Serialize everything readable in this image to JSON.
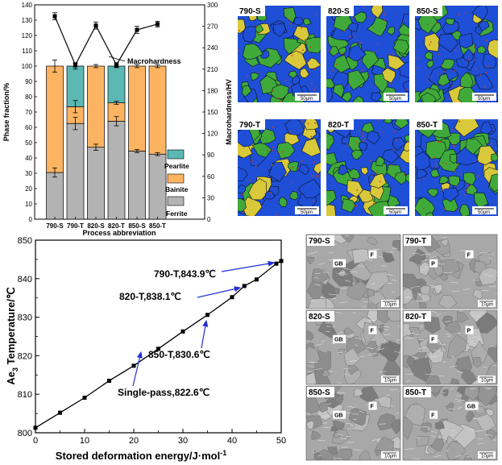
{
  "chart_data": [
    {
      "type": "bar",
      "categories": [
        "790-S",
        "790-T",
        "820-S",
        "820-T",
        "850-S",
        "850-T"
      ],
      "series": [
        {
          "name": "Ferrite",
          "color": "#b3b3b3",
          "values": [
            30.5,
            62.5,
            47.0,
            64.0,
            44.5,
            42.5
          ],
          "err": [
            3,
            4,
            2,
            3,
            1,
            1
          ]
        },
        {
          "name": "Bainite",
          "color": "#fdb462",
          "values": [
            69.5,
            11.0,
            53.0,
            12.0,
            55.5,
            57.5
          ],
          "err": [
            4,
            4,
            1,
            1,
            1,
            1
          ]
        },
        {
          "name": "Pearlite",
          "color": "#5cb8b3",
          "values": [
            0,
            26.5,
            0,
            24.0,
            0,
            0
          ],
          "err": [
            0,
            2,
            0,
            1,
            0,
            0
          ]
        }
      ],
      "line": {
        "name": "Macrohardness",
        "values": [
          284,
          216,
          271,
          216,
          265,
          273
        ],
        "err": [
          5,
          3,
          5,
          3,
          5,
          4
        ]
      },
      "xlabel": "Process abbreviation",
      "ylabel": "Phase fraction/%",
      "y2label": "Macrohardness/HV",
      "ylim": [
        0,
        140
      ],
      "yticks": [
        0,
        10,
        20,
        30,
        40,
        50,
        60,
        70,
        80,
        90,
        100,
        110,
        120,
        130,
        140
      ],
      "y2lim": [
        0,
        300
      ],
      "y2ticks": [
        0,
        30,
        60,
        90,
        120,
        150,
        180,
        210,
        240,
        270,
        300
      ],
      "annotation": "Macrohardness",
      "legend_position": "right"
    },
    {
      "type": "line",
      "x": [
        0,
        5,
        10,
        15,
        20,
        25,
        30,
        35,
        40,
        45,
        50
      ],
      "y": [
        801.3,
        805.2,
        809.1,
        813.5,
        817.4,
        821.8,
        826.3,
        830.6,
        835.2,
        839.8,
        843.9
      ],
      "markers_x": [
        0,
        5,
        10,
        15,
        20,
        25,
        30,
        35,
        40,
        42.5,
        45,
        49,
        50
      ],
      "markers_y": [
        801.3,
        805.2,
        809.1,
        813.5,
        817.4,
        821.8,
        826.3,
        830.6,
        835.2,
        838.1,
        839.8,
        843.9,
        844.6
      ],
      "xlabel": "Stored deformation energy/J·mol",
      "xlabel_sup": "-1",
      "ylabel_main": "Ae",
      "ylabel_sub": "3",
      "ylabel_rest": " Temperature/℃",
      "xlim": [
        0,
        50
      ],
      "xticks": [
        0,
        10,
        20,
        30,
        40,
        50
      ],
      "ylim": [
        800,
        850
      ],
      "yticks": [
        800,
        810,
        820,
        830,
        840,
        850
      ],
      "annotations": [
        {
          "text": "790-T,843.9℃",
          "x": 49,
          "y": 843.9
        },
        {
          "text": "820-T,838.1℃",
          "x": 42.5,
          "y": 838.1
        },
        {
          "text": "850-T,830.6℃",
          "x": 35,
          "y": 830.6
        },
        {
          "text": "Single-pass,822.6℃",
          "x": 26,
          "y": 822.6
        }
      ]
    }
  ],
  "ebsd_panels": [
    {
      "label": "790-S",
      "scale": "50μm"
    },
    {
      "label": "820-S",
      "scale": "50μm"
    },
    {
      "label": "850-S",
      "scale": "50μm"
    },
    {
      "label": "790-T",
      "scale": "50μm"
    },
    {
      "label": "820-T",
      "scale": "50μm"
    },
    {
      "label": "850-T",
      "scale": "50μm"
    }
  ],
  "sem_panels": [
    {
      "label": "790-S",
      "scale": "10μm",
      "marks": [
        "GB",
        "F"
      ]
    },
    {
      "label": "790-T",
      "scale": "10μm",
      "marks": [
        "P",
        "F"
      ]
    },
    {
      "label": "820-S",
      "scale": "10μm",
      "marks": [
        "GB",
        "F"
      ]
    },
    {
      "label": "820-T",
      "scale": "10μm",
      "marks": [
        "F",
        "P"
      ]
    },
    {
      "label": "850-S",
      "scale": "10μm",
      "marks": [
        "GB",
        "F"
      ]
    },
    {
      "label": "850-T",
      "scale": "10μm",
      "marks": [
        "F",
        "GB"
      ]
    }
  ],
  "colors": {
    "ebsd_blue": "#1f4fd6",
    "ebsd_green": "#3faa3a",
    "ebsd_yellow": "#d9c93a",
    "sem_gray": "#9a9a9a",
    "arrow_blue": "#1f2fd6"
  }
}
